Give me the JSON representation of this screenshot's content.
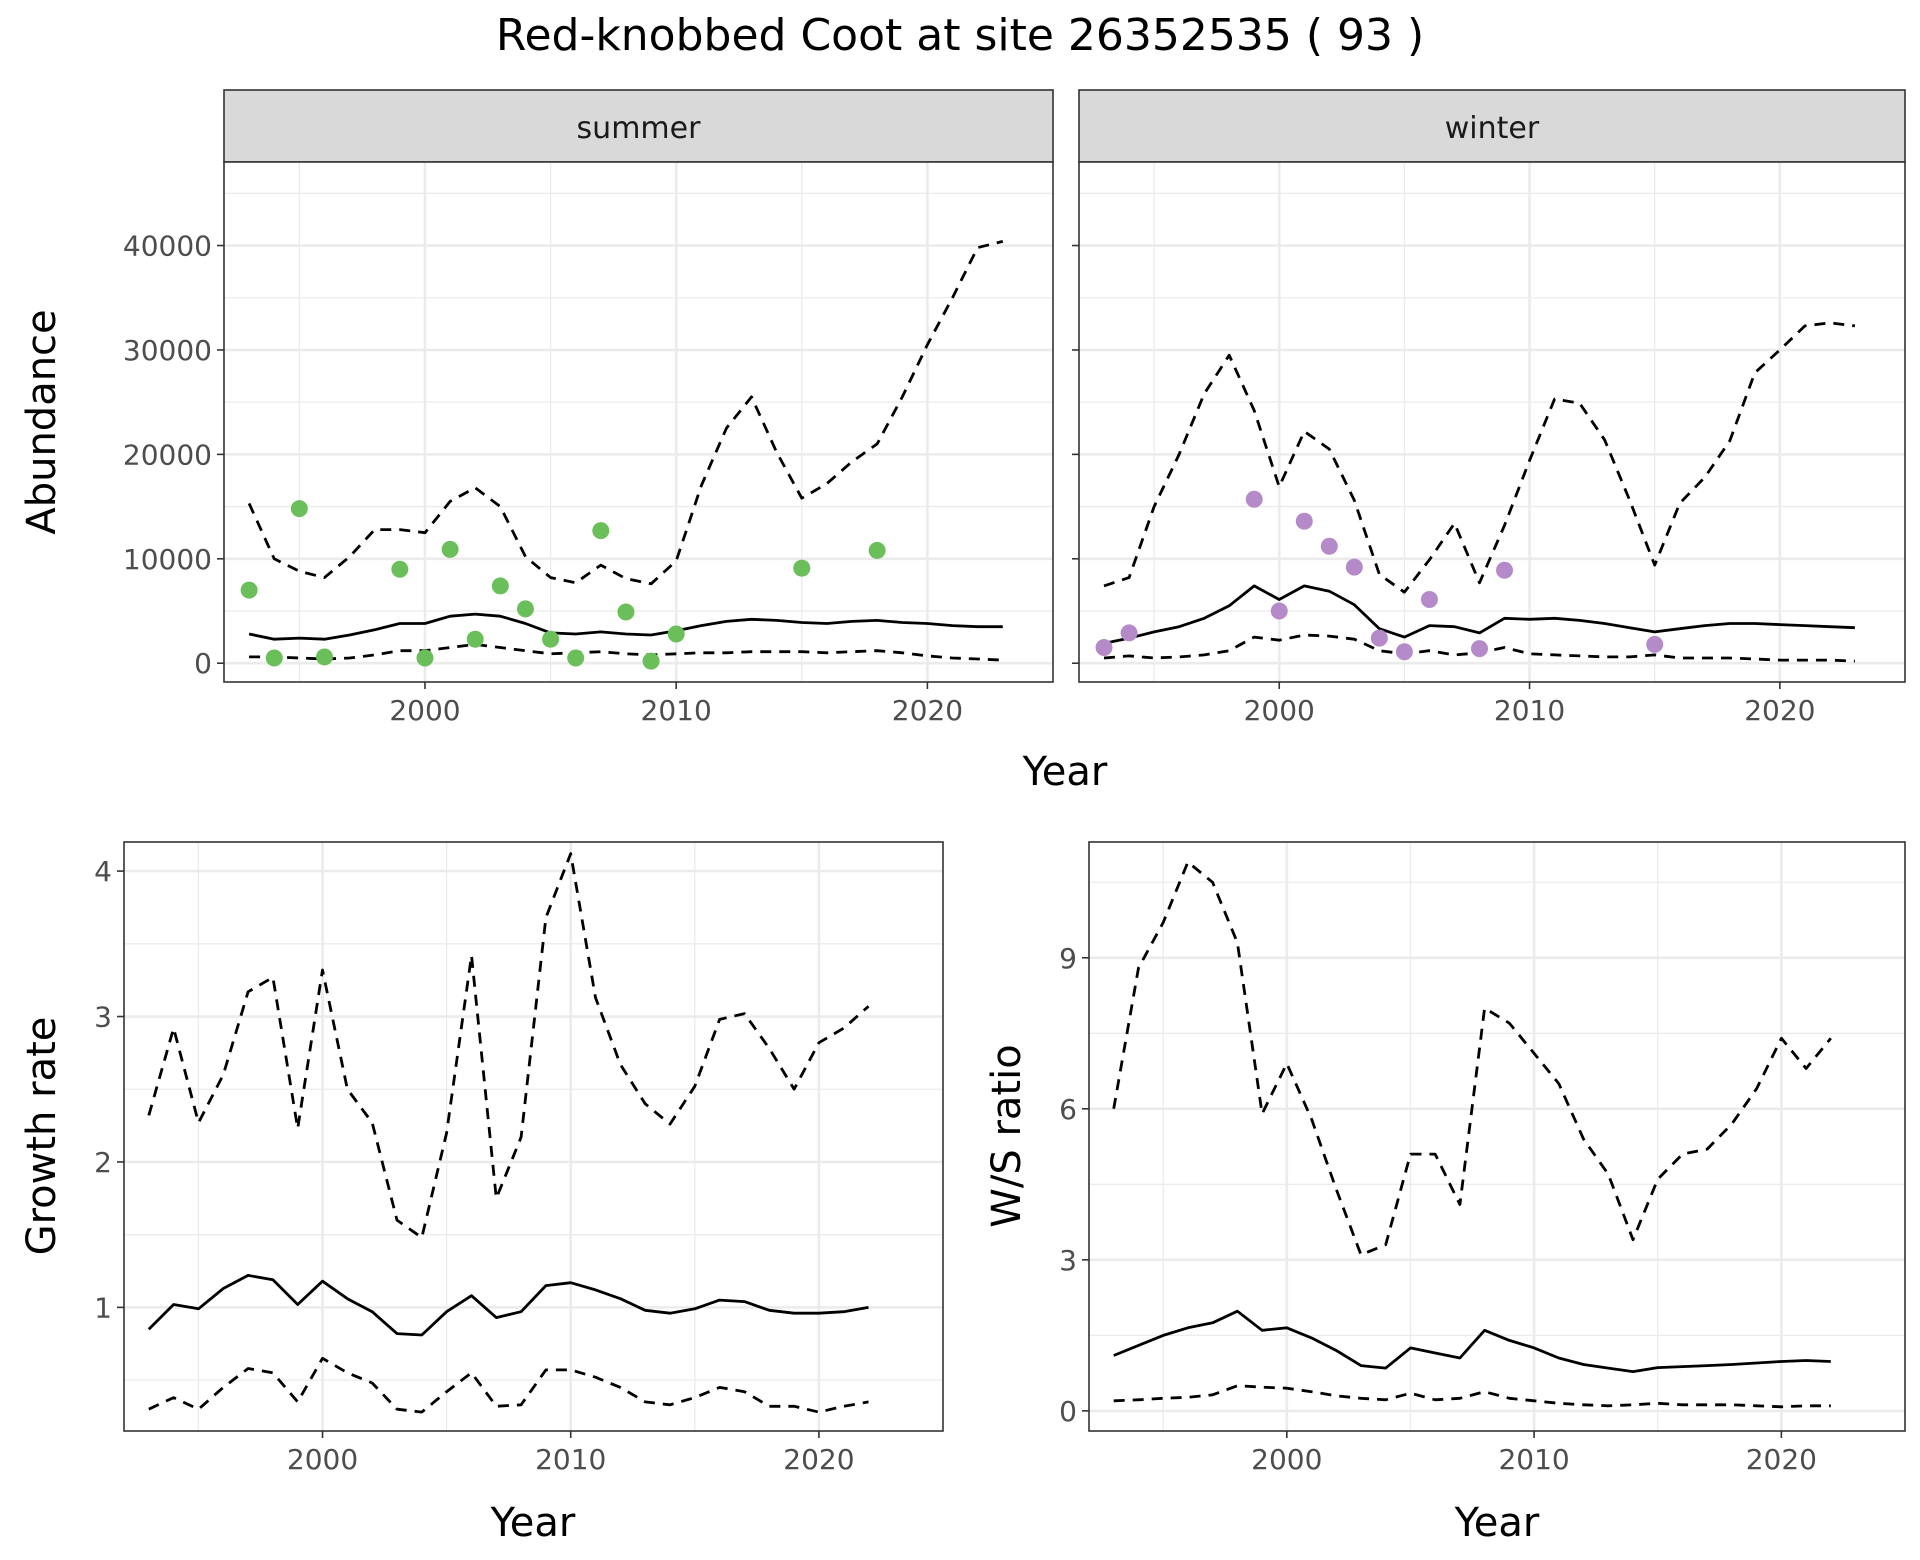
{
  "title": "Red-knobbed Coot at site 26352535 ( 93 )",
  "colors": {
    "summer_points": "#6abf5b",
    "winter_points": "#b48bc8",
    "lines": "#000000",
    "grid_major": "#ebebeb",
    "strip_fill": "#d9d9d9"
  },
  "chart_data": [
    {
      "type": "line",
      "panel": "abundance",
      "facets": [
        "summer",
        "winter"
      ],
      "xlabel": "Year",
      "ylabel": "Abundance",
      "xlim": [
        1992,
        2025
      ],
      "ylim": [
        -1800,
        48000
      ],
      "xticks": [
        2000,
        2010,
        2020
      ],
      "yticks": [
        0,
        10000,
        20000,
        30000,
        40000
      ],
      "ytick_labels": [
        "0",
        "10000",
        "20000",
        "30000",
        "40000"
      ],
      "grid": true,
      "summer": {
        "points": {
          "x": [
            1993,
            1994,
            1995,
            1996,
            1999,
            2000,
            2001,
            2002,
            2003,
            2004,
            2005,
            2006,
            2007,
            2008,
            2009,
            2010,
            2015,
            2018
          ],
          "y": [
            7000,
            500,
            14800,
            600,
            9000,
            500,
            10900,
            2300,
            7400,
            5200,
            2300,
            500,
            12700,
            4900,
            200,
            2800,
            9100,
            10800
          ]
        },
        "series": [
          {
            "style": "solid",
            "x": [
              1993,
              1994,
              1995,
              1996,
              1997,
              1998,
              1999,
              2000,
              2001,
              2002,
              2003,
              2004,
              2005,
              2006,
              2007,
              2008,
              2009,
              2010,
              2011,
              2012,
              2013,
              2014,
              2015,
              2016,
              2017,
              2018,
              2019,
              2020,
              2021,
              2022,
              2023
            ],
            "values": [
              2800,
              2300,
              2400,
              2300,
              2700,
              3200,
              3800,
              3800,
              4500,
              4700,
              4500,
              3800,
              2900,
              2800,
              3000,
              2800,
              2700,
              3100,
              3600,
              4000,
              4200,
              4100,
              3900,
              3800,
              4000,
              4100,
              3900,
              3800,
              3600,
              3500,
              3500
            ]
          },
          {
            "style": "dashed",
            "x": [
              1993,
              1994,
              1995,
              1996,
              1997,
              1998,
              1999,
              2000,
              2001,
              2002,
              2003,
              2004,
              2005,
              2006,
              2007,
              2008,
              2009,
              2010,
              2011,
              2012,
              2013,
              2014,
              2015,
              2016,
              2017,
              2018,
              2019,
              2020,
              2021,
              2022,
              2023
            ],
            "values": [
              15300,
              10000,
              8800,
              8200,
              10200,
              12800,
              12800,
              12500,
              15500,
              16800,
              15000,
              10200,
              8200,
              7700,
              9400,
              8100,
              7600,
              9800,
              17000,
              22500,
              25500,
              20200,
              15800,
              17200,
              19300,
              21000,
              25500,
              30500,
              35000,
              39800,
              40400
            ]
          },
          {
            "style": "dashed",
            "x": [
              1993,
              1994,
              1995,
              1996,
              1997,
              1998,
              1999,
              2000,
              2001,
              2002,
              2003,
              2004,
              2005,
              2006,
              2007,
              2008,
              2009,
              2010,
              2011,
              2012,
              2013,
              2014,
              2015,
              2016,
              2017,
              2018,
              2019,
              2020,
              2021,
              2022,
              2023
            ],
            "values": [
              600,
              600,
              500,
              400,
              500,
              800,
              1200,
              1200,
              1500,
              1800,
              1500,
              1200,
              900,
              1000,
              1100,
              900,
              800,
              900,
              1000,
              1000,
              1100,
              1100,
              1100,
              1000,
              1100,
              1200,
              1000,
              700,
              500,
              400,
              300
            ]
          }
        ]
      },
      "winter": {
        "points": {
          "x": [
            1993,
            1994,
            1999,
            2000,
            2001,
            2002,
            2003,
            2004,
            2005,
            2006,
            2008,
            2009,
            2015
          ],
          "y": [
            1500,
            2900,
            15700,
            5000,
            13600,
            11200,
            9200,
            2400,
            1100,
            6100,
            1400,
            8900,
            1800
          ]
        },
        "series": [
          {
            "style": "solid",
            "x": [
              1993,
              1994,
              1995,
              1996,
              1997,
              1998,
              1999,
              2000,
              2001,
              2002,
              2003,
              2004,
              2005,
              2006,
              2007,
              2008,
              2009,
              2010,
              2011,
              2012,
              2013,
              2014,
              2015,
              2016,
              2017,
              2018,
              2019,
              2020,
              2021,
              2022,
              2023
            ],
            "values": [
              1900,
              2400,
              3000,
              3500,
              4300,
              5500,
              7400,
              6100,
              7400,
              6900,
              5600,
              3300,
              2500,
              3600,
              3500,
              2900,
              4300,
              4200,
              4300,
              4100,
              3800,
              3400,
              3000,
              3300,
              3600,
              3800,
              3800,
              3700,
              3600,
              3500,
              3400
            ]
          },
          {
            "style": "dashed",
            "x": [
              1993,
              1994,
              1995,
              1996,
              1997,
              1998,
              1999,
              2000,
              2001,
              2002,
              2003,
              2004,
              2005,
              2006,
              2007,
              2008,
              2009,
              2010,
              2011,
              2012,
              2013,
              2014,
              2015,
              2016,
              2017,
              2018,
              2019,
              2020,
              2021,
              2022,
              2023
            ],
            "values": [
              7400,
              8200,
              15000,
              20000,
              25800,
              29500,
              24200,
              16900,
              22200,
              20500,
              15600,
              8500,
              6800,
              9900,
              13400,
              7700,
              13200,
              19400,
              25300,
              24900,
              21400,
              15600,
              9400,
              15300,
              17800,
              21300,
              27800,
              30000,
              32300,
              32600,
              32300
            ]
          },
          {
            "style": "dashed",
            "x": [
              1993,
              1994,
              1995,
              1996,
              1997,
              1998,
              1999,
              2000,
              2001,
              2002,
              2003,
              2004,
              2005,
              2006,
              2007,
              2008,
              2009,
              2010,
              2011,
              2012,
              2013,
              2014,
              2015,
              2016,
              2017,
              2018,
              2019,
              2020,
              2021,
              2022,
              2023
            ],
            "values": [
              500,
              700,
              500,
              600,
              800,
              1200,
              2500,
              2200,
              2700,
              2600,
              2300,
              1200,
              900,
              1200,
              800,
              1000,
              1500,
              900,
              800,
              700,
              600,
              600,
              800,
              500,
              500,
              500,
              400,
              300,
              300,
              300,
              200
            ]
          }
        ]
      }
    },
    {
      "type": "line",
      "panel": "growth",
      "xlabel": "Year",
      "ylabel": "Growth rate",
      "xlim": [
        1992,
        2025
      ],
      "ylim": [
        0.15,
        4.2
      ],
      "xticks": [
        2000,
        2010,
        2020
      ],
      "yticks": [
        1,
        2,
        3,
        4
      ],
      "ytick_labels": [
        "1",
        "2",
        "3",
        "4"
      ],
      "grid": true,
      "series": [
        {
          "style": "solid",
          "x": [
            1993,
            1994,
            1995,
            1996,
            1997,
            1998,
            1999,
            2000,
            2001,
            2002,
            2003,
            2004,
            2005,
            2006,
            2007,
            2008,
            2009,
            2010,
            2011,
            2012,
            2013,
            2014,
            2015,
            2016,
            2017,
            2018,
            2019,
            2020,
            2021,
            2022
          ],
          "values": [
            0.85,
            1.02,
            0.99,
            1.13,
            1.22,
            1.19,
            1.02,
            1.18,
            1.06,
            0.97,
            0.82,
            0.81,
            0.97,
            1.08,
            0.93,
            0.97,
            1.15,
            1.17,
            1.12,
            1.06,
            0.98,
            0.96,
            0.99,
            1.05,
            1.04,
            0.98,
            0.96,
            0.96,
            0.97,
            1.0
          ]
        },
        {
          "style": "dashed",
          "x": [
            1993,
            1994,
            1995,
            1996,
            1997,
            1998,
            1999,
            2000,
            2001,
            2002,
            2003,
            2004,
            2005,
            2006,
            2007,
            2008,
            2009,
            2010,
            2011,
            2012,
            2013,
            2014,
            2015,
            2016,
            2017,
            2018,
            2019,
            2020,
            2021,
            2022
          ],
          "values": [
            2.32,
            2.92,
            2.27,
            2.6,
            3.17,
            3.27,
            2.23,
            3.32,
            2.5,
            2.27,
            1.6,
            1.48,
            2.2,
            3.42,
            1.75,
            2.17,
            3.68,
            4.12,
            3.13,
            2.67,
            2.4,
            2.26,
            2.52,
            2.98,
            3.02,
            2.78,
            2.5,
            2.82,
            2.92,
            3.07
          ]
        },
        {
          "style": "dashed",
          "x": [
            1993,
            1994,
            1995,
            1996,
            1997,
            1998,
            1999,
            2000,
            2001,
            2002,
            2003,
            2004,
            2005,
            2006,
            2007,
            2008,
            2009,
            2010,
            2011,
            2012,
            2013,
            2014,
            2015,
            2016,
            2017,
            2018,
            2019,
            2020,
            2021,
            2022
          ],
          "values": [
            0.3,
            0.38,
            0.3,
            0.45,
            0.58,
            0.55,
            0.35,
            0.65,
            0.55,
            0.48,
            0.3,
            0.28,
            0.42,
            0.55,
            0.32,
            0.33,
            0.57,
            0.57,
            0.52,
            0.45,
            0.35,
            0.33,
            0.38,
            0.45,
            0.42,
            0.32,
            0.32,
            0.28,
            0.32,
            0.35
          ]
        }
      ]
    },
    {
      "type": "line",
      "panel": "ratio",
      "xlabel": "Year",
      "ylabel": "W/S ratio",
      "xlim": [
        1992,
        2025
      ],
      "ylim": [
        -0.4,
        11.3
      ],
      "xticks": [
        2000,
        2010,
        2020
      ],
      "yticks": [
        0,
        3,
        6,
        9
      ],
      "ytick_labels": [
        "0",
        "3",
        "6",
        "9"
      ],
      "grid": true,
      "series": [
        {
          "style": "solid",
          "x": [
            1993,
            1994,
            1995,
            1996,
            1997,
            1998,
            1999,
            2000,
            2001,
            2002,
            2003,
            2004,
            2005,
            2006,
            2007,
            2008,
            2009,
            2010,
            2011,
            2012,
            2013,
            2014,
            2015,
            2016,
            2017,
            2018,
            2019,
            2020,
            2021,
            2022
          ],
          "values": [
            1.1,
            1.3,
            1.5,
            1.65,
            1.75,
            1.98,
            1.6,
            1.65,
            1.45,
            1.2,
            0.9,
            0.85,
            1.25,
            1.15,
            1.05,
            1.6,
            1.4,
            1.25,
            1.05,
            0.92,
            0.85,
            0.78,
            0.86,
            0.88,
            0.9,
            0.92,
            0.95,
            0.98,
            1.0,
            0.98
          ]
        },
        {
          "style": "dashed",
          "x": [
            1993,
            1994,
            1995,
            1996,
            1997,
            1998,
            1999,
            2000,
            2001,
            2002,
            2003,
            2004,
            2005,
            2006,
            2007,
            2008,
            2009,
            2010,
            2011,
            2012,
            2013,
            2014,
            2015,
            2016,
            2017,
            2018,
            2019,
            2020,
            2021,
            2022
          ],
          "values": [
            6.0,
            8.8,
            9.7,
            10.9,
            10.5,
            9.3,
            5.9,
            6.9,
            5.8,
            4.4,
            3.1,
            3.3,
            5.1,
            5.1,
            4.1,
            8.0,
            7.7,
            7.1,
            6.5,
            5.4,
            4.7,
            3.4,
            4.6,
            5.1,
            5.2,
            5.7,
            6.4,
            7.4,
            6.8,
            7.4
          ]
        },
        {
          "style": "dashed",
          "x": [
            1993,
            1994,
            1995,
            1996,
            1997,
            1998,
            1999,
            2000,
            2001,
            2002,
            2003,
            2004,
            2005,
            2006,
            2007,
            2008,
            2009,
            2010,
            2011,
            2012,
            2013,
            2014,
            2015,
            2016,
            2017,
            2018,
            2019,
            2020,
            2021,
            2022
          ],
          "values": [
            0.2,
            0.22,
            0.25,
            0.27,
            0.32,
            0.5,
            0.47,
            0.45,
            0.38,
            0.3,
            0.25,
            0.22,
            0.35,
            0.22,
            0.25,
            0.38,
            0.25,
            0.2,
            0.15,
            0.12,
            0.1,
            0.12,
            0.15,
            0.12,
            0.12,
            0.12,
            0.1,
            0.08,
            0.1,
            0.1
          ]
        }
      ]
    }
  ]
}
